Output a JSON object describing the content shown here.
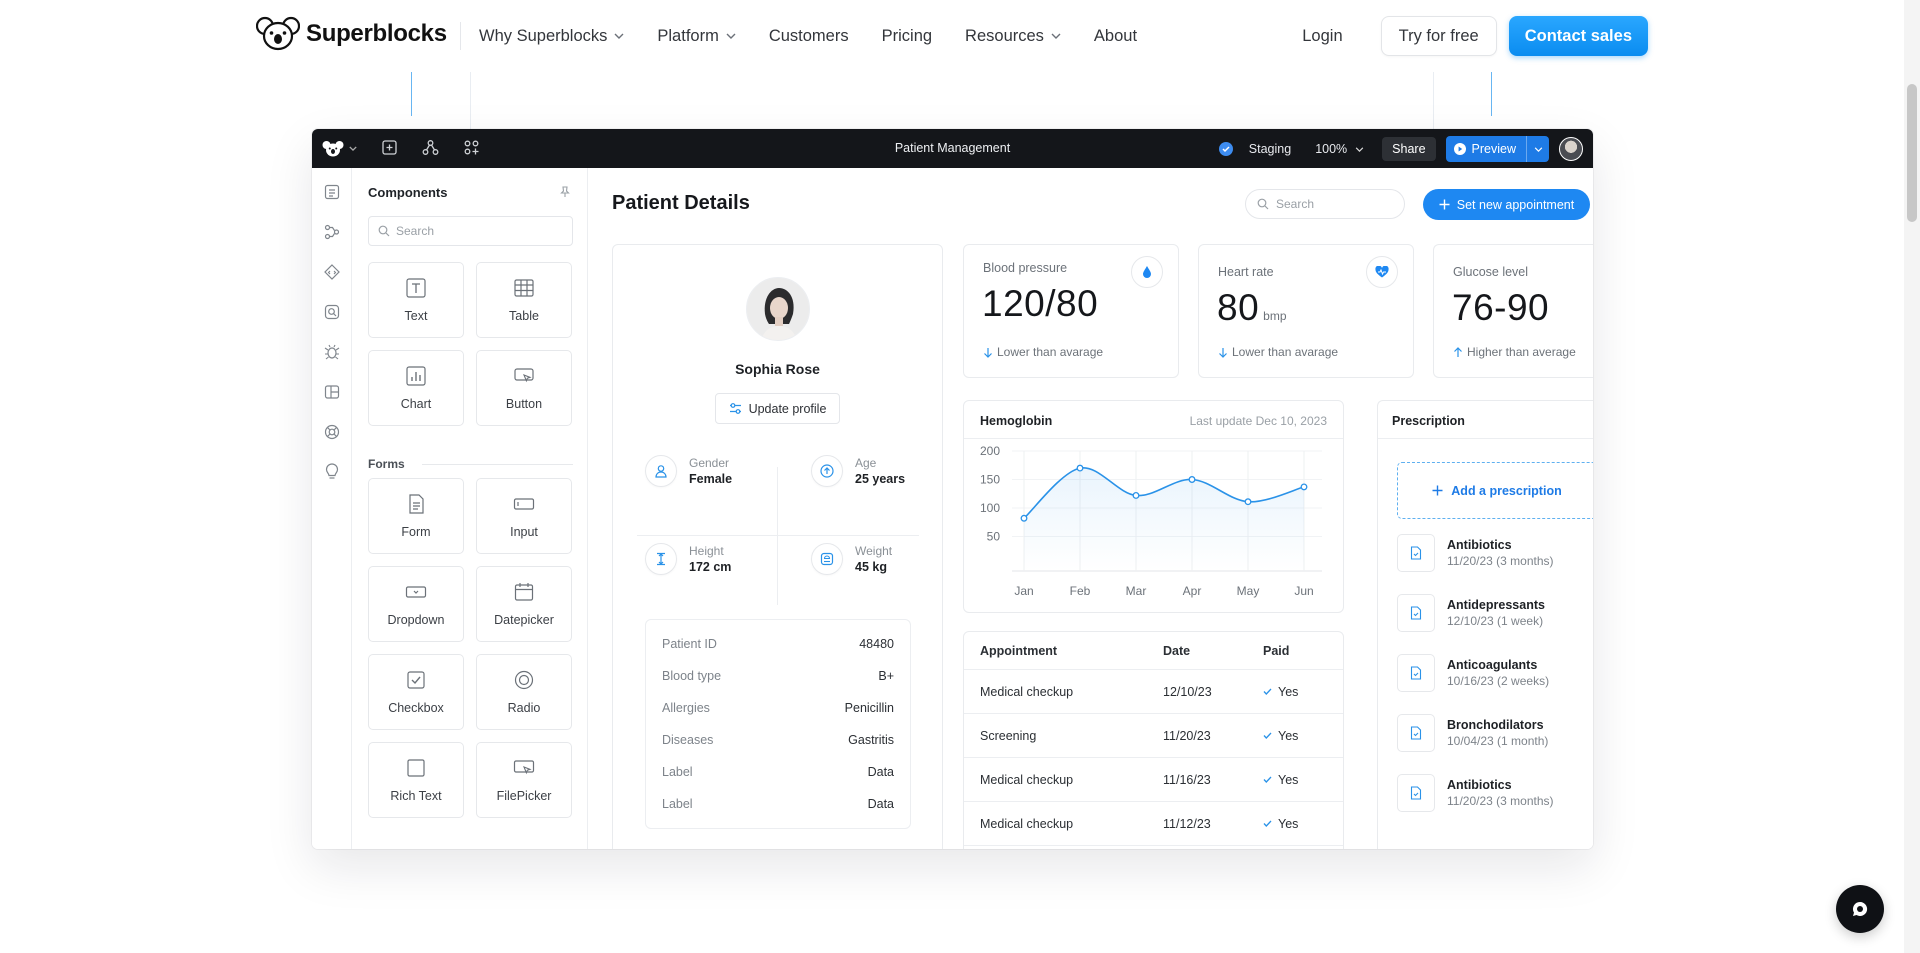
{
  "site": {
    "brand": "Superblocks",
    "nav": [
      "Why Superblocks",
      "Platform",
      "Customers",
      "Pricing",
      "Resources",
      "About"
    ],
    "login": "Login",
    "try_free": "Try for free",
    "contact_sales": "Contact sales"
  },
  "app": {
    "title": "Patient Management",
    "env": "Staging",
    "zoom": "100%",
    "share": "Share",
    "preview": "Preview"
  },
  "components": {
    "title": "Components",
    "search_placeholder": "Search",
    "items": [
      "Text",
      "Table",
      "Chart",
      "Button"
    ],
    "forms_label": "Forms",
    "form_items": [
      "Form",
      "Input",
      "Dropdown",
      "Datepicker",
      "Checkbox",
      "Radio",
      "Rich Text",
      "FilePicker"
    ]
  },
  "page": {
    "title": "Patient Details",
    "search_placeholder": "Search",
    "new_appointment": "Set new appointment"
  },
  "patient": {
    "name": "Sophia Rose",
    "update_profile": "Update profile",
    "gender_label": "Gender",
    "gender": "Female",
    "age_label": "Age",
    "age": "25 years",
    "height_label": "Height",
    "height": "172 cm",
    "weight_label": "Weight",
    "weight": "45 kg",
    "info": [
      {
        "k": "Patient ID",
        "v": "48480"
      },
      {
        "k": "Blood type",
        "v": "B+"
      },
      {
        "k": "Allergies",
        "v": "Penicillin"
      },
      {
        "k": "Diseases",
        "v": "Gastritis"
      },
      {
        "k": "Label",
        "v": "Data"
      },
      {
        "k": "Label",
        "v": "Data"
      }
    ]
  },
  "metrics": [
    {
      "label": "Blood pressure",
      "value": "120/80",
      "unit": "",
      "note": "Lower than avarage",
      "dir": "down"
    },
    {
      "label": "Heart rate",
      "value": "80",
      "unit": "bmp",
      "note": "Lower than avarage",
      "dir": "down"
    },
    {
      "label": "Glucose level",
      "value": "76-90",
      "unit": "",
      "note": "Higher than average",
      "dir": "up"
    }
  ],
  "hemoglobin": {
    "title": "Hemoglobin",
    "updated": "Last update Dec 10, 2023"
  },
  "chart_data": {
    "type": "line",
    "categories": [
      "Jan",
      "Feb",
      "Mar",
      "Apr",
      "May",
      "Jun"
    ],
    "values": [
      82,
      170,
      122,
      150,
      111,
      137
    ],
    "yticks": [
      200,
      150,
      100,
      50
    ],
    "ylim": [
      0,
      200
    ],
    "title": "Hemoglobin"
  },
  "appointments": {
    "headers": [
      "Appointment",
      "Date",
      "Paid"
    ],
    "rows": [
      {
        "name": "Medical checkup",
        "date": "12/10/23",
        "paid": "Yes"
      },
      {
        "name": "Screening",
        "date": "11/20/23",
        "paid": "Yes"
      },
      {
        "name": "Medical checkup",
        "date": "11/16/23",
        "paid": "Yes"
      },
      {
        "name": "Medical checkup",
        "date": "11/12/23",
        "paid": "Yes"
      }
    ]
  },
  "prescription": {
    "title": "Prescription",
    "add": "Add a prescription",
    "items": [
      {
        "name": "Antibiotics",
        "detail": "11/20/23 (3 months)"
      },
      {
        "name": "Antidepressants",
        "detail": "12/10/23 (1 week)"
      },
      {
        "name": "Anticoagulants",
        "detail": "10/16/23 (2 weeks)"
      },
      {
        "name": "Bronchodilators",
        "detail": "10/04/23 (1 month)"
      },
      {
        "name": "Antibiotics",
        "detail": "11/20/23 (3 months)"
      }
    ]
  },
  "colors": {
    "accent": "#1e88f2",
    "dark_bar": "#14161a"
  }
}
